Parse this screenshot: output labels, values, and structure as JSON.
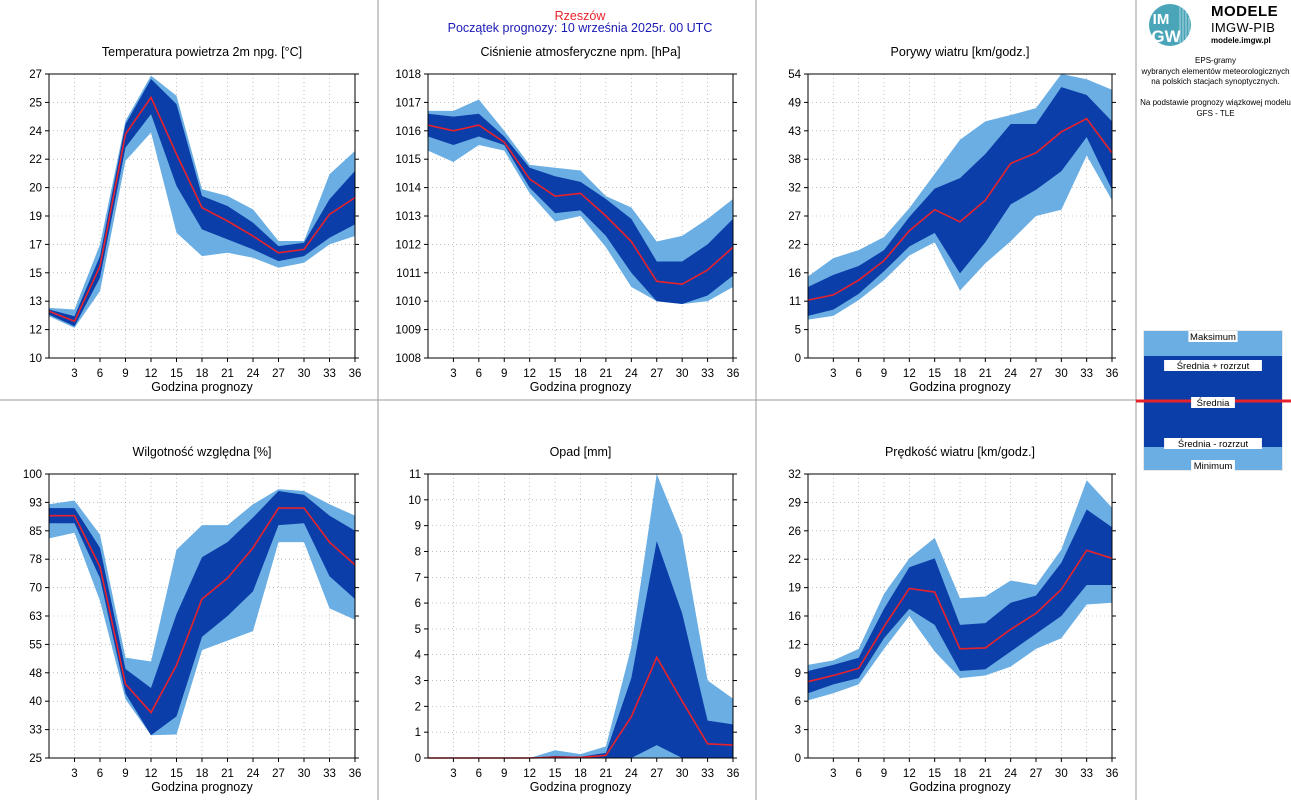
{
  "header": {
    "station": "Rzeszów",
    "forecast_start": "Początek prognozy: 10 września 2025r. 00 UTC"
  },
  "sidebar": {
    "logo_title": "MODELE",
    "logo_subtitle": "IMGW-PIB",
    "logo_url": "modele.imgw.pl",
    "logo_mark_top": "IM",
    "logo_mark_bottom": "GW",
    "description": [
      "EPS-gramy",
      "wybranych elementów meteorologicznych",
      "na polskich stacjach  synoptycznych.",
      "",
      "Na podstawie prognozy wiązkowej modelu",
      "GFS - TLE"
    ],
    "legend": {
      "max": "Maksimum",
      "mean_plus": "Średnia + rozrzut",
      "mean": "Średnia",
      "mean_minus": "Średnia - rozrzut",
      "min": "Minimum"
    }
  },
  "colors": {
    "outer_band": "#6aaee4",
    "inner_band": "#0b3ea8",
    "mean_line": "#e8222c",
    "station_title": "#e8222c",
    "forecast_title": "#1a1ab4"
  },
  "chart_data": [
    {
      "type": "area",
      "title": "Temperatura powietrza 2m npg. [°C]",
      "xlabel": "Godzina prognozy",
      "xlim": [
        0,
        36
      ],
      "ylim": [
        10,
        27
      ],
      "yticks": [
        "10",
        "12",
        "13",
        "15",
        "17",
        "19",
        "20",
        "22",
        "24",
        "25",
        "27"
      ],
      "xticks": [
        "3",
        "6",
        "9",
        "12",
        "15",
        "18",
        "21",
        "24",
        "27",
        "30",
        "33",
        "36"
      ],
      "x": [
        0,
        3,
        6,
        9,
        12,
        15,
        18,
        21,
        24,
        27,
        30,
        33,
        36
      ],
      "min": [
        12.5,
        11.8,
        14.0,
        21.8,
        23.5,
        17.5,
        16.1,
        16.3,
        16.0,
        15.4,
        15.7,
        16.8,
        17.3
      ],
      "lower": [
        12.6,
        11.9,
        14.8,
        22.6,
        24.6,
        20.3,
        17.7,
        17.1,
        16.5,
        15.8,
        16.1,
        17.2,
        18.0
      ],
      "mean": [
        12.8,
        12.2,
        15.5,
        23.4,
        25.6,
        22.2,
        19.0,
        18.2,
        17.3,
        16.3,
        16.5,
        18.6,
        19.6
      ],
      "upper": [
        12.9,
        12.5,
        16.1,
        24.0,
        26.7,
        25.2,
        19.7,
        19.1,
        18.1,
        16.7,
        16.9,
        19.5,
        21.2
      ],
      "max": [
        13.0,
        12.9,
        16.8,
        24.2,
        26.9,
        25.7,
        20.1,
        19.7,
        18.9,
        17.0,
        17.0,
        21.0,
        22.4
      ]
    },
    {
      "type": "area",
      "title": "Ciśnienie atmosferyczne npm. [hPa]",
      "xlabel": "Godzina prognozy",
      "xlim": [
        0,
        36
      ],
      "ylim": [
        1008,
        1018
      ],
      "yticks": [
        "1008",
        "1009",
        "1010",
        "1011",
        "1012",
        "1013",
        "1014",
        "1015",
        "1016",
        "1017",
        "1018"
      ],
      "xticks": [
        "3",
        "6",
        "9",
        "12",
        "15",
        "18",
        "21",
        "24",
        "27",
        "30",
        "33",
        "36"
      ],
      "x": [
        0,
        3,
        6,
        9,
        12,
        15,
        18,
        21,
        24,
        27,
        30,
        33,
        36
      ],
      "min": [
        1015.3,
        1014.9,
        1015.5,
        1015.3,
        1013.8,
        1012.8,
        1013.0,
        1011.9,
        1010.5,
        1010.0,
        1009.9,
        1010.0,
        1010.5
      ],
      "lower": [
        1015.8,
        1015.5,
        1015.8,
        1015.5,
        1014.0,
        1013.1,
        1013.2,
        1012.3,
        1011.0,
        1010.0,
        1009.9,
        1010.2,
        1010.9
      ],
      "mean": [
        1016.2,
        1016.0,
        1016.2,
        1015.6,
        1014.3,
        1013.7,
        1013.8,
        1013.0,
        1012.1,
        1010.7,
        1010.6,
        1011.1,
        1011.9
      ],
      "upper": [
        1016.6,
        1016.5,
        1016.6,
        1015.8,
        1014.7,
        1014.4,
        1014.2,
        1013.6,
        1012.9,
        1011.4,
        1011.4,
        1012.0,
        1012.9
      ],
      "max": [
        1016.7,
        1016.7,
        1017.1,
        1016.0,
        1014.8,
        1014.7,
        1014.6,
        1013.7,
        1013.3,
        1012.1,
        1012.3,
        1012.9,
        1013.6
      ]
    },
    {
      "type": "area",
      "title": "Porywy wiatru [km/godz.]",
      "xlabel": "Godzina prognozy",
      "xlim": [
        0,
        36
      ],
      "ylim": [
        0,
        54
      ],
      "yticks": [
        "0",
        "5",
        "11",
        "16",
        "22",
        "27",
        "32",
        "38",
        "43",
        "49",
        "54"
      ],
      "xticks": [
        "3",
        "6",
        "9",
        "12",
        "15",
        "18",
        "21",
        "24",
        "27",
        "30",
        "33",
        "36"
      ],
      "x": [
        0,
        3,
        6,
        9,
        12,
        15,
        18,
        21,
        24,
        27,
        30,
        33,
        36
      ],
      "min": [
        7.3,
        8.0,
        11.0,
        14.8,
        19.5,
        22.0,
        12.8,
        18.0,
        22.2,
        27.0,
        28.2,
        38.5,
        30.0
      ],
      "lower": [
        8.0,
        9.2,
        12.2,
        16.5,
        21.2,
        23.8,
        16.1,
        22.0,
        29.2,
        32.0,
        35.5,
        42.0,
        32.0
      ],
      "mean": [
        11.0,
        12.0,
        14.8,
        18.5,
        24.2,
        28.2,
        25.9,
        30.0,
        37.0,
        39.0,
        43.0,
        45.5,
        39.0
      ],
      "upper": [
        13.5,
        15.8,
        17.5,
        20.5,
        26.8,
        32.2,
        34.2,
        38.8,
        44.5,
        44.5,
        51.5,
        50.0,
        45.0
      ],
      "max": [
        15.5,
        19.0,
        20.5,
        23.0,
        28.5,
        35.0,
        41.5,
        45.0,
        46.2,
        47.5,
        54.0,
        53.0,
        51.0
      ]
    },
    {
      "type": "area",
      "title": "Wilgotność względna [%]",
      "xlabel": "Godzina prognozy",
      "xlim": [
        0,
        36
      ],
      "ylim": [
        25,
        100
      ],
      "yticks": [
        "25",
        "33",
        "40",
        "48",
        "55",
        "63",
        "70",
        "78",
        "85",
        "93",
        "100"
      ],
      "xticks": [
        "3",
        "6",
        "9",
        "12",
        "15",
        "18",
        "21",
        "24",
        "27",
        "30",
        "33",
        "36"
      ],
      "x": [
        0,
        3,
        6,
        9,
        12,
        15,
        18,
        21,
        24,
        27,
        30,
        33,
        36
      ],
      "min": [
        83.0,
        84.5,
        66.5,
        40.5,
        31.0,
        31.2,
        53.5,
        56.0,
        58.5,
        82.0,
        82.0,
        64.5,
        61.5
      ],
      "lower": [
        87.0,
        87.0,
        72.5,
        42.0,
        31.0,
        36.0,
        57.0,
        62.5,
        69.0,
        86.5,
        87.0,
        73.0,
        67.0
      ],
      "mean": [
        89.0,
        89.0,
        75.5,
        44.5,
        37.0,
        49.5,
        67.0,
        72.5,
        80.5,
        91.0,
        91.0,
        82.0,
        76.0
      ],
      "upper": [
        91.0,
        91.0,
        80.5,
        48.5,
        43.5,
        63.0,
        78.0,
        82.0,
        88.5,
        95.5,
        94.5,
        89.0,
        85.0
      ],
      "max": [
        92.0,
        93.0,
        84.0,
        51.5,
        50.5,
        80.0,
        86.5,
        86.5,
        92.0,
        96.0,
        95.5,
        92.0,
        89.0
      ]
    },
    {
      "type": "area",
      "title": "Opad [mm]",
      "xlabel": "Godzina prognozy",
      "xlim": [
        0,
        36
      ],
      "ylim": [
        0,
        11
      ],
      "yticks": [
        "0",
        "1",
        "2",
        "3",
        "4",
        "5",
        "6",
        "7",
        "8",
        "9",
        "10",
        "11"
      ],
      "xticks": [
        "3",
        "6",
        "9",
        "12",
        "15",
        "18",
        "21",
        "24",
        "27",
        "30",
        "33",
        "36"
      ],
      "x": [
        0,
        3,
        6,
        9,
        12,
        15,
        18,
        21,
        24,
        27,
        30,
        33,
        36
      ],
      "min": [
        0,
        0,
        0,
        0,
        0,
        0,
        0,
        0,
        0,
        0,
        0,
        0,
        0
      ],
      "lower": [
        0,
        0,
        0,
        0,
        0,
        0,
        0,
        0,
        0,
        0.5,
        0,
        0,
        0
      ],
      "mean": [
        0,
        0,
        0,
        0,
        0,
        0.03,
        0.02,
        0.1,
        1.6,
        3.9,
        2.2,
        0.55,
        0.5
      ],
      "upper": [
        0,
        0,
        0,
        0,
        0,
        0.08,
        0.05,
        0.2,
        3.1,
        8.4,
        5.6,
        1.45,
        1.3
      ],
      "max": [
        0,
        0,
        0,
        0,
        0,
        0.3,
        0.15,
        0.45,
        4.3,
        11.0,
        8.6,
        3.0,
        2.3
      ]
    },
    {
      "type": "area",
      "title": "Prędkość wiatru [km/godz.]",
      "xlabel": "Godzina prognozy",
      "xlim": [
        0,
        36
      ],
      "ylim": [
        0,
        32
      ],
      "yticks": [
        "0",
        "3",
        "6",
        "9",
        "12",
        "16",
        "19",
        "22",
        "26",
        "29",
        "32"
      ],
      "xticks": [
        "3",
        "6",
        "9",
        "12",
        "15",
        "18",
        "21",
        "24",
        "27",
        "30",
        "33",
        "36"
      ],
      "x": [
        0,
        3,
        6,
        9,
        12,
        15,
        18,
        21,
        24,
        27,
        30,
        33,
        36
      ],
      "min": [
        6.5,
        7.3,
        8.3,
        12.3,
        16.0,
        12.0,
        9.0,
        9.3,
        10.3,
        12.3,
        13.5,
        17.3,
        17.5
      ],
      "lower": [
        7.3,
        8.3,
        9.0,
        13.5,
        16.8,
        15.0,
        9.8,
        10.0,
        12.0,
        14.0,
        16.0,
        19.5,
        19.5
      ],
      "mean": [
        8.6,
        9.3,
        10.1,
        14.8,
        19.1,
        18.7,
        12.3,
        12.4,
        14.5,
        16.3,
        19.0,
        23.4,
        22.5
      ],
      "upper": [
        9.8,
        10.5,
        11.3,
        16.8,
        21.5,
        22.5,
        15.0,
        15.2,
        17.5,
        18.3,
        22.0,
        28.0,
        26.0
      ],
      "max": [
        10.5,
        11.0,
        12.3,
        18.5,
        22.5,
        24.8,
        18.0,
        18.2,
        20.0,
        19.5,
        23.5,
        31.3,
        28.2
      ]
    }
  ]
}
